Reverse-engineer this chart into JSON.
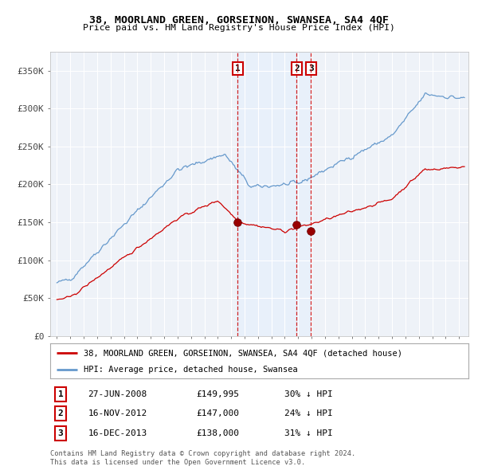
{
  "title": "38, MOORLAND GREEN, GORSEINON, SWANSEA, SA4 4QF",
  "subtitle": "Price paid vs. HM Land Registry's House Price Index (HPI)",
  "legend_property": "38, MOORLAND GREEN, GORSEINON, SWANSEA, SA4 4QF (detached house)",
  "legend_hpi": "HPI: Average price, detached house, Swansea",
  "transactions": [
    {
      "num": 1,
      "date": "27-JUN-2008",
      "price": 149995,
      "pct": "30%",
      "dir": "↓"
    },
    {
      "num": 2,
      "date": "16-NOV-2012",
      "price": 147000,
      "pct": "24%",
      "dir": "↓"
    },
    {
      "num": 3,
      "date": "16-DEC-2013",
      "price": 138000,
      "pct": "31%",
      "dir": "↓"
    }
  ],
  "transaction_dates_decimal": [
    2008.49,
    2012.88,
    2013.96
  ],
  "transaction_prices": [
    149995,
    147000,
    138000
  ],
  "property_color": "#cc0000",
  "hpi_color": "#6699cc",
  "vline_color": "#cc0000",
  "shading_color": "#ddeeff",
  "background_color": "#eef2f8",
  "ylabel": "",
  "yticks": [
    0,
    50000,
    100000,
    150000,
    200000,
    250000,
    300000,
    350000
  ],
  "ytick_labels": [
    "£0",
    "£50K",
    "£100K",
    "£150K",
    "£200K",
    "£250K",
    "£300K",
    "£350K"
  ],
  "ylim": [
    0,
    375000
  ],
  "xlim_start": 1994.5,
  "xlim_end": 2025.7,
  "footer": "Contains HM Land Registry data © Crown copyright and database right 2024.\nThis data is licensed under the Open Government Licence v3.0.",
  "figsize": [
    6.0,
    5.9
  ],
  "dpi": 100
}
